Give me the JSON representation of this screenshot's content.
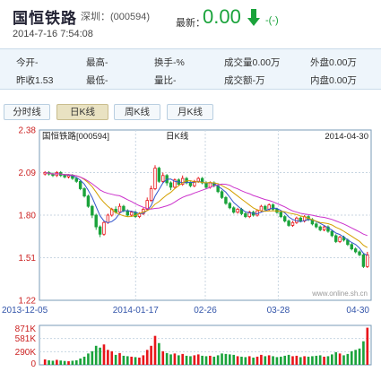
{
  "header": {
    "stock_name": "国恒铁路",
    "stock_code": "深圳：(000594)",
    "datetime": "2014-7-16 7:54:08",
    "latest_label": "最新：",
    "latest_value": "0.00",
    "change": "-(-)",
    "down_color": "#1aa33b"
  },
  "quote": {
    "row1": [
      "今开-",
      "最高-",
      "换手-%",
      "成交量0.00万",
      "外盘0.00万"
    ],
    "row2": [
      "昨收1.53",
      "最低-",
      "量比-",
      "成交额-万",
      "内盘0.00万"
    ]
  },
  "tabs": [
    {
      "label": "分时线",
      "active": false
    },
    {
      "label": "日K线",
      "active": true
    },
    {
      "label": "周K线",
      "active": false
    },
    {
      "label": "月K线",
      "active": false
    }
  ],
  "chart_data": {
    "type": "candlestick",
    "title_left": "国恒铁路[000594]",
    "title_center": "日K线",
    "date_right": "2014-04-30",
    "watermark": "www.online.sh.cn",
    "y_ticks": [
      "2.38",
      "2.09",
      "1.80",
      "1.51",
      "1.22"
    ],
    "y_values": [
      2.38,
      2.09,
      1.8,
      1.51,
      1.22
    ],
    "ylim": [
      1.22,
      2.38
    ],
    "x_ticks": [
      "2013-12-05",
      "2014-01-17",
      "02-26",
      "03-28",
      "04-30"
    ],
    "vol_ticks": [
      "871K",
      "581K",
      "290K",
      "0"
    ],
    "vol_values": [
      871,
      581,
      290,
      0
    ],
    "up_color": "#e8161b",
    "down_color": "#1aa33b",
    "ma_colors": [
      "#3355cc",
      "#d4a000",
      "#cc33cc"
    ],
    "candles": [
      [
        2.08,
        2.09,
        2.1,
        2.07,
        120
      ],
      [
        2.09,
        2.08,
        2.1,
        2.07,
        100
      ],
      [
        2.08,
        2.07,
        2.09,
        2.06,
        90
      ],
      [
        2.07,
        2.09,
        2.1,
        2.06,
        110
      ],
      [
        2.09,
        2.07,
        2.1,
        2.06,
        95
      ],
      [
        2.07,
        2.06,
        2.08,
        2.05,
        85
      ],
      [
        2.06,
        2.07,
        2.08,
        2.05,
        80
      ],
      [
        2.07,
        2.05,
        2.08,
        2.04,
        90
      ],
      [
        2.05,
        2.03,
        2.06,
        2.02,
        100
      ],
      [
        2.03,
        1.98,
        2.04,
        1.97,
        140
      ],
      [
        1.98,
        1.93,
        1.99,
        1.92,
        180
      ],
      [
        1.93,
        1.86,
        1.94,
        1.85,
        250
      ],
      [
        1.86,
        1.8,
        1.87,
        1.78,
        300
      ],
      [
        1.8,
        1.72,
        1.81,
        1.7,
        420
      ],
      [
        1.72,
        1.67,
        1.73,
        1.65,
        380
      ],
      [
        1.67,
        1.75,
        1.76,
        1.66,
        450
      ],
      [
        1.75,
        1.8,
        1.81,
        1.74,
        330
      ],
      [
        1.8,
        1.84,
        1.85,
        1.79,
        300
      ],
      [
        1.84,
        1.82,
        1.86,
        1.81,
        220
      ],
      [
        1.82,
        1.86,
        1.88,
        1.81,
        260
      ],
      [
        1.86,
        1.83,
        1.87,
        1.82,
        200
      ],
      [
        1.83,
        1.8,
        1.84,
        1.79,
        190
      ],
      [
        1.8,
        1.82,
        1.83,
        1.79,
        180
      ],
      [
        1.82,
        1.79,
        1.83,
        1.78,
        170
      ],
      [
        1.79,
        1.81,
        1.82,
        1.78,
        160
      ],
      [
        1.81,
        1.84,
        1.85,
        1.8,
        210
      ],
      [
        1.84,
        1.9,
        1.92,
        1.83,
        330
      ],
      [
        1.9,
        1.98,
        2.0,
        1.89,
        420
      ],
      [
        1.98,
        2.12,
        2.14,
        1.97,
        640
      ],
      [
        2.12,
        2.03,
        2.13,
        2.02,
        480
      ],
      [
        2.03,
        2.07,
        2.09,
        2.02,
        300
      ],
      [
        2.07,
        2.02,
        2.08,
        2.0,
        260
      ],
      [
        2.02,
        1.99,
        2.03,
        1.97,
        230
      ],
      [
        1.99,
        2.04,
        2.05,
        1.98,
        250
      ],
      [
        2.04,
        2.01,
        2.05,
        2.0,
        210
      ],
      [
        2.01,
        2.05,
        2.07,
        2.0,
        240
      ],
      [
        2.05,
        2.02,
        2.06,
        2.01,
        200
      ],
      [
        2.02,
        2.0,
        2.03,
        1.99,
        190
      ],
      [
        2.0,
        2.03,
        2.04,
        1.99,
        210
      ],
      [
        2.03,
        2.05,
        2.06,
        2.02,
        230
      ],
      [
        2.05,
        2.02,
        2.06,
        2.01,
        200
      ],
      [
        2.02,
        1.99,
        2.03,
        1.98,
        190
      ],
      [
        1.99,
        2.02,
        2.03,
        1.98,
        200
      ],
      [
        2.02,
        2.0,
        2.03,
        1.99,
        180
      ],
      [
        2.0,
        1.96,
        2.01,
        1.95,
        210
      ],
      [
        1.96,
        1.92,
        1.97,
        1.91,
        250
      ],
      [
        1.92,
        1.88,
        1.93,
        1.87,
        240
      ],
      [
        1.88,
        1.85,
        1.89,
        1.84,
        230
      ],
      [
        1.85,
        1.82,
        1.86,
        1.81,
        220
      ],
      [
        1.82,
        1.84,
        1.85,
        1.81,
        190
      ],
      [
        1.84,
        1.81,
        1.85,
        1.8,
        180
      ],
      [
        1.81,
        1.79,
        1.82,
        1.78,
        170
      ],
      [
        1.79,
        1.82,
        1.83,
        1.78,
        190
      ],
      [
        1.82,
        1.8,
        1.83,
        1.79,
        160
      ],
      [
        1.8,
        1.83,
        1.84,
        1.79,
        180
      ],
      [
        1.83,
        1.86,
        1.87,
        1.82,
        220
      ],
      [
        1.86,
        1.84,
        1.87,
        1.83,
        190
      ],
      [
        1.84,
        1.87,
        1.88,
        1.83,
        210
      ],
      [
        1.87,
        1.84,
        1.88,
        1.83,
        190
      ],
      [
        1.84,
        1.82,
        1.85,
        1.81,
        170
      ],
      [
        1.82,
        1.79,
        1.83,
        1.78,
        180
      ],
      [
        1.79,
        1.76,
        1.8,
        1.75,
        200
      ],
      [
        1.76,
        1.73,
        1.77,
        1.72,
        220
      ],
      [
        1.73,
        1.75,
        1.76,
        1.72,
        190
      ],
      [
        1.75,
        1.78,
        1.79,
        1.74,
        200
      ],
      [
        1.78,
        1.76,
        1.79,
        1.75,
        170
      ],
      [
        1.76,
        1.79,
        1.8,
        1.75,
        190
      ],
      [
        1.79,
        1.77,
        1.8,
        1.76,
        180
      ],
      [
        1.77,
        1.74,
        1.78,
        1.73,
        190
      ],
      [
        1.74,
        1.72,
        1.75,
        1.71,
        200
      ],
      [
        1.72,
        1.7,
        1.73,
        1.69,
        210
      ],
      [
        1.7,
        1.72,
        1.73,
        1.69,
        180
      ],
      [
        1.72,
        1.69,
        1.73,
        1.68,
        190
      ],
      [
        1.69,
        1.66,
        1.7,
        1.65,
        230
      ],
      [
        1.66,
        1.62,
        1.67,
        1.61,
        280
      ],
      [
        1.62,
        1.65,
        1.66,
        1.61,
        250
      ],
      [
        1.65,
        1.63,
        1.66,
        1.62,
        210
      ],
      [
        1.63,
        1.6,
        1.64,
        1.59,
        240
      ],
      [
        1.6,
        1.57,
        1.61,
        1.56,
        300
      ],
      [
        1.57,
        1.55,
        1.58,
        1.54,
        330
      ],
      [
        1.55,
        1.53,
        1.56,
        1.52,
        360
      ],
      [
        1.53,
        1.45,
        1.54,
        1.44,
        520
      ],
      [
        1.45,
        1.53,
        1.55,
        1.44,
        820
      ]
    ]
  }
}
